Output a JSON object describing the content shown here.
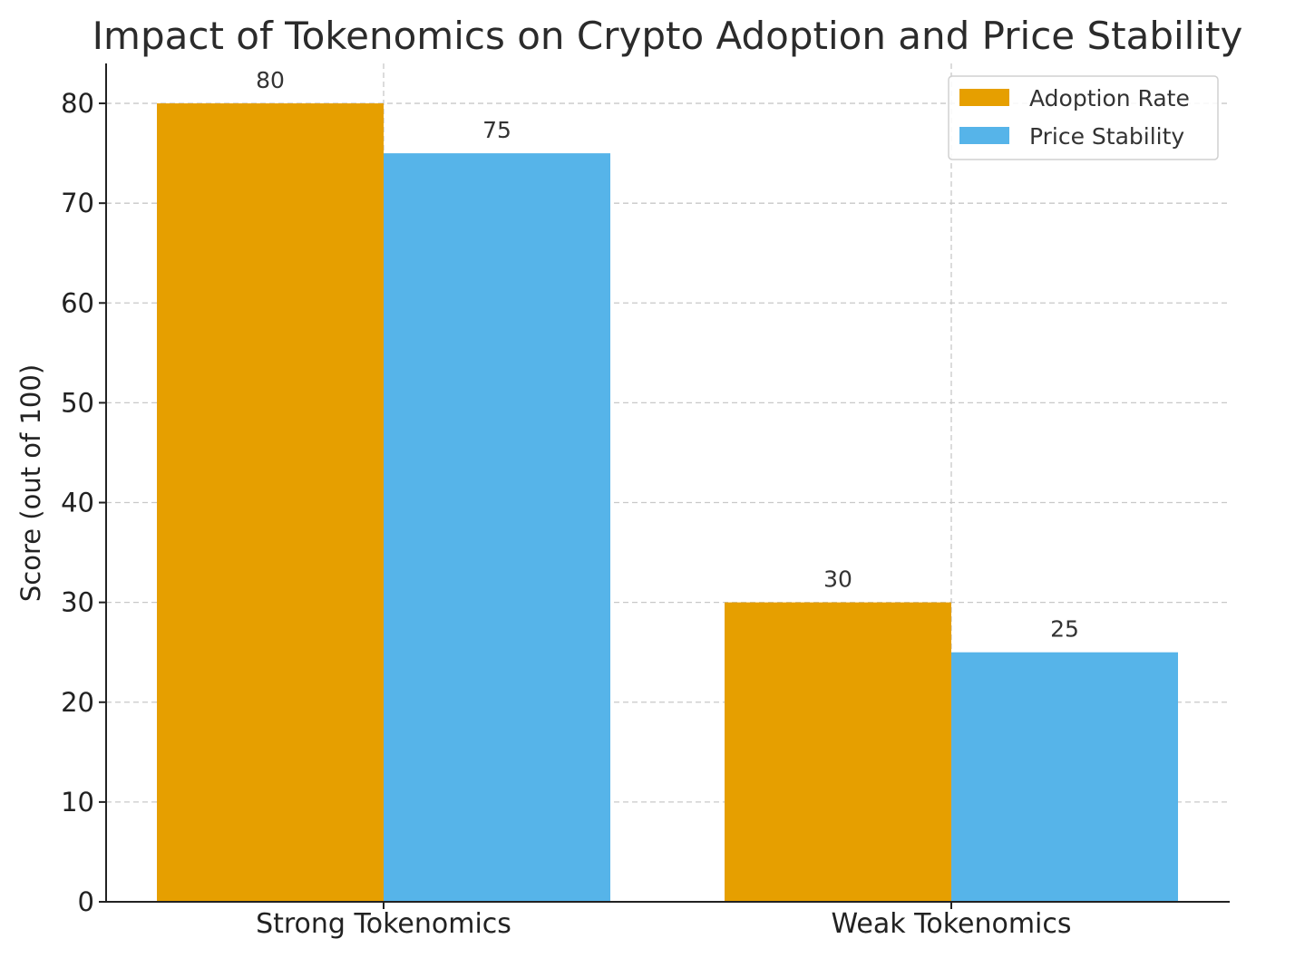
{
  "chart_data": {
    "type": "bar",
    "title": "Impact of Tokenomics on Crypto Adoption and Price Stability",
    "xlabel": "",
    "ylabel": "Score (out of 100)",
    "categories": [
      "Strong Tokenomics",
      "Weak Tokenomics"
    ],
    "series": [
      {
        "name": "Adoption Rate",
        "values": [
          80,
          30
        ],
        "color": "#E69F00"
      },
      {
        "name": "Price Stability",
        "values": [
          75,
          25
        ],
        "color": "#56B4E9"
      }
    ],
    "ylim": [
      0,
      84
    ],
    "yticks": [
      0,
      10,
      20,
      30,
      40,
      50,
      60,
      70,
      80
    ],
    "grid": true,
    "legend": "top-right",
    "data_labels": true
  }
}
